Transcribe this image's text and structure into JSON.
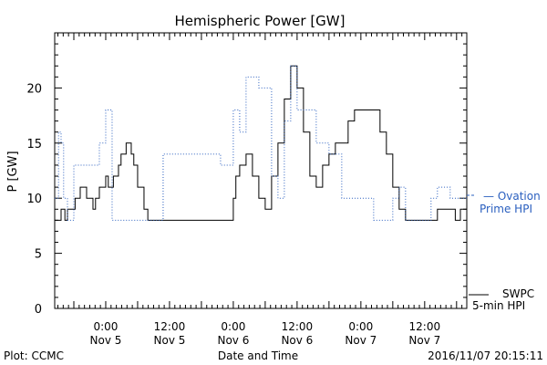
{
  "chart_data": {
    "type": "line",
    "title": "Hemispheric Power [GW]",
    "xlabel": "Date and Time",
    "ylabel": "P [GW]",
    "xlim": [
      -0.4,
      2.83
    ],
    "ylim": [
      0,
      25
    ],
    "x_unit": "days from 2016-11-05 00:00",
    "yticks": [
      0,
      5,
      10,
      15,
      20
    ],
    "xticks": [
      {
        "x": 0.0,
        "line1": "0:00",
        "line2": "Nov 5"
      },
      {
        "x": 0.5,
        "line1": "12:00",
        "line2": "Nov 5"
      },
      {
        "x": 1.0,
        "line1": "0:00",
        "line2": "Nov 6"
      },
      {
        "x": 1.5,
        "line1": "12:00",
        "line2": "Nov 6"
      },
      {
        "x": 2.0,
        "line1": "0:00",
        "line2": "Nov 7"
      },
      {
        "x": 2.5,
        "line1": "12:00",
        "line2": "Nov 7"
      }
    ],
    "series": [
      {
        "name": "SWPC 5-min HPI",
        "color": "#000000",
        "style": "solid",
        "x": [
          -0.4,
          -0.36,
          -0.35,
          -0.33,
          -0.32,
          -0.3,
          -0.27,
          -0.24,
          -0.2,
          -0.17,
          -0.15,
          -0.1,
          -0.08,
          -0.05,
          0.0,
          0.02,
          0.06,
          0.1,
          0.12,
          0.16,
          0.2,
          0.22,
          0.25,
          0.3,
          0.33,
          0.35,
          0.38,
          0.4,
          0.43,
          0.45,
          0.5,
          0.52,
          0.56,
          0.58,
          0.6,
          0.62,
          0.66,
          0.7,
          0.8,
          0.9,
          1.0,
          1.02,
          1.05,
          1.1,
          1.15,
          1.2,
          1.25,
          1.3,
          1.35,
          1.4,
          1.45,
          1.5,
          1.55,
          1.6,
          1.65,
          1.7,
          1.75,
          1.8,
          1.85,
          1.9,
          1.95,
          2.0,
          2.05,
          2.1,
          2.15,
          2.2,
          2.25,
          2.3,
          2.35,
          2.4,
          2.45,
          2.5,
          2.55,
          2.6,
          2.65,
          2.7,
          2.72,
          2.74,
          2.76,
          2.78,
          2.8,
          2.83
        ],
        "y": [
          8,
          8,
          9,
          9,
          8,
          9,
          9,
          10,
          11,
          11,
          10,
          9,
          10,
          11,
          12,
          11,
          12,
          13,
          14,
          15,
          14,
          13,
          11,
          9,
          8,
          8,
          8,
          8,
          8,
          8,
          8,
          8,
          8,
          8,
          8,
          8,
          8,
          8,
          8,
          8,
          10,
          12,
          13,
          14,
          12,
          10,
          9,
          12,
          15,
          19,
          22,
          20,
          16,
          12,
          11,
          13,
          14,
          15,
          15,
          17,
          18,
          18,
          18,
          18,
          16,
          14,
          11,
          9,
          8,
          8,
          8,
          8,
          8,
          9,
          9,
          9,
          9,
          8,
          8,
          9,
          9,
          9
        ]
      },
      {
        "name": "Ovation Prime HPI",
        "color": "#2a5fbf",
        "style": "dotted",
        "x": [
          -0.4,
          -0.37,
          -0.35,
          -0.33,
          -0.3,
          -0.25,
          -0.2,
          -0.15,
          -0.1,
          -0.05,
          0.0,
          0.05,
          0.1,
          0.2,
          0.3,
          0.35,
          0.4,
          0.45,
          0.5,
          0.6,
          0.7,
          0.8,
          0.9,
          1.0,
          1.05,
          1.1,
          1.2,
          1.3,
          1.35,
          1.4,
          1.45,
          1.5,
          1.55,
          1.6,
          1.65,
          1.7,
          1.75,
          1.8,
          1.85,
          1.9,
          1.95,
          2.0,
          2.05,
          2.1,
          2.15,
          2.2,
          2.25,
          2.3,
          2.35,
          2.4,
          2.45,
          2.5,
          2.55,
          2.6,
          2.65,
          2.7,
          2.75,
          2.8,
          2.83
        ],
        "y": [
          10,
          16,
          15,
          10,
          8,
          13,
          13,
          13,
          13,
          15,
          18,
          8,
          8,
          8,
          8,
          8,
          8,
          14,
          14,
          14,
          14,
          14,
          13,
          18,
          16,
          21,
          20,
          12,
          10,
          17,
          22,
          18,
          18,
          18,
          15,
          15,
          14,
          14,
          10,
          10,
          10,
          10,
          10,
          8,
          8,
          8,
          10,
          11,
          8,
          8,
          8,
          8,
          10,
          11,
          11,
          10,
          10,
          10,
          10
        ]
      }
    ],
    "grid": false,
    "legend": [
      {
        "label_line1": "— Ovation",
        "label_line2": "Prime HPI",
        "color": "#2a5fbf",
        "position": "right-middle"
      },
      {
        "label_line1": "SWPC",
        "label_line2": "5-min HPI",
        "color": "#000000",
        "position": "right-bottom"
      }
    ]
  },
  "footer": {
    "plot_credit": "Plot: CCMC",
    "timestamp": "2016/11/07 20:15:11"
  }
}
